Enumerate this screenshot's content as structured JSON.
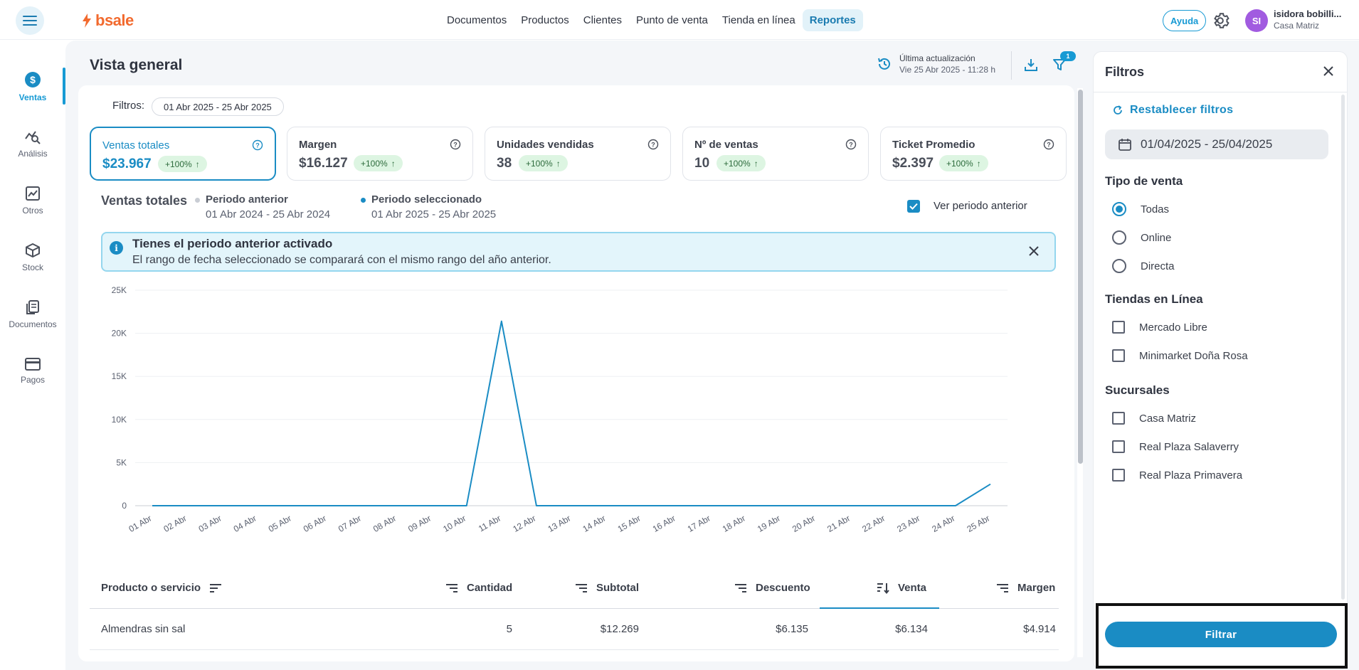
{
  "topbar": {
    "logo_text": "bsale",
    "nav": [
      "Documentos",
      "Productos",
      "Clientes",
      "Punto de venta",
      "Tienda en línea",
      "Reportes"
    ],
    "active_nav": "Reportes",
    "help_label": "Ayuda",
    "avatar_initials": "SI",
    "user_name": "isidora bobilli...",
    "user_branch": "Casa Matriz"
  },
  "sidebar": {
    "items": [
      {
        "label": "Ventas",
        "icon": "dollar-circle-icon",
        "active": true
      },
      {
        "label": "Análisis",
        "icon": "analysis-icon"
      },
      {
        "label": "Otros",
        "icon": "chart-icon"
      },
      {
        "label": "Stock",
        "icon": "box-icon"
      },
      {
        "label": "Documentos",
        "icon": "documents-icon"
      },
      {
        "label": "Pagos",
        "icon": "card-icon"
      }
    ]
  },
  "header": {
    "title": "Vista general",
    "update_label": "Última actualización",
    "update_value": "Vie 25 Abr 2025 - 11:28 h",
    "filter_badge": "1"
  },
  "filters_bar": {
    "label": "Filtros:",
    "chip": "01 Abr 2025 - 25 Abr 2025"
  },
  "kpis": [
    {
      "label": "Ventas totales",
      "value": "$23.967",
      "change": "+100%",
      "active": true
    },
    {
      "label": "Margen",
      "value": "$16.127",
      "change": "+100%"
    },
    {
      "label": "Unidades vendidas",
      "value": "38",
      "change": "+100%"
    },
    {
      "label": "Nº de ventas",
      "value": "10",
      "change": "+100%"
    },
    {
      "label": "Ticket Promedio",
      "value": "$2.397",
      "change": "+100%"
    }
  ],
  "legend": {
    "title": "Ventas totales",
    "previous": {
      "name": "Periodo anterior",
      "range": "01 Abr 2024 - 25 Abr 2024",
      "color": "#c9cdd4"
    },
    "selected": {
      "name": "Periodo seleccionado",
      "range": "01 Abr 2025 - 25 Abr 2025",
      "color": "#1a8cc4"
    },
    "show_previous_label": "Ver periodo anterior"
  },
  "alert": {
    "title": "Tienes el periodo anterior activado",
    "body": "El rango de fecha seleccionado se comparará con el mismo rango del año anterior."
  },
  "chart_data": {
    "type": "line",
    "categories": [
      "01 Abr",
      "02 Abr",
      "03 Abr",
      "04 Abr",
      "05 Abr",
      "06 Abr",
      "07 Abr",
      "08 Abr",
      "09 Abr",
      "10 Abr",
      "11 Abr",
      "12 Abr",
      "13 Abr",
      "14 Abr",
      "15 Abr",
      "16 Abr",
      "17 Abr",
      "18 Abr",
      "19 Abr",
      "20 Abr",
      "21 Abr",
      "22 Abr",
      "23 Abr",
      "24 Abr",
      "25 Abr"
    ],
    "series": [
      {
        "name": "Periodo seleccionado",
        "values": [
          0,
          0,
          0,
          0,
          0,
          0,
          0,
          0,
          0,
          0,
          21400,
          0,
          0,
          0,
          0,
          0,
          0,
          0,
          0,
          0,
          0,
          0,
          0,
          0,
          2500
        ]
      }
    ],
    "yticks": [
      "0",
      "5K",
      "10K",
      "15K",
      "20K",
      "25K"
    ],
    "ylim": [
      0,
      25000
    ],
    "grid": true,
    "color": "#1a8cc4"
  },
  "table": {
    "headers": [
      "Producto o servicio",
      "Cantidad",
      "Subtotal",
      "Descuento",
      "Venta",
      "Margen"
    ],
    "rows": [
      [
        "Almendras sin sal",
        "5",
        "$12.269",
        "$6.135",
        "$6.134",
        "$4.914"
      ]
    ]
  },
  "panel": {
    "title": "Filtros",
    "reset_label": "Restablecer filtros",
    "date_value": "01/04/2025 - 25/04/2025",
    "tipo_title": "Tipo de venta",
    "tipo_options": [
      "Todas",
      "Online",
      "Directa"
    ],
    "tiendas_title": "Tiendas en Línea",
    "tiendas_options": [
      "Mercado Libre",
      "Minimarket Doña Rosa"
    ],
    "sucursales_title": "Sucursales",
    "sucursales_options": [
      "Casa Matriz",
      "Real Plaza Salaverry",
      "Real Plaza Primavera"
    ],
    "submit_label": "Filtrar"
  }
}
